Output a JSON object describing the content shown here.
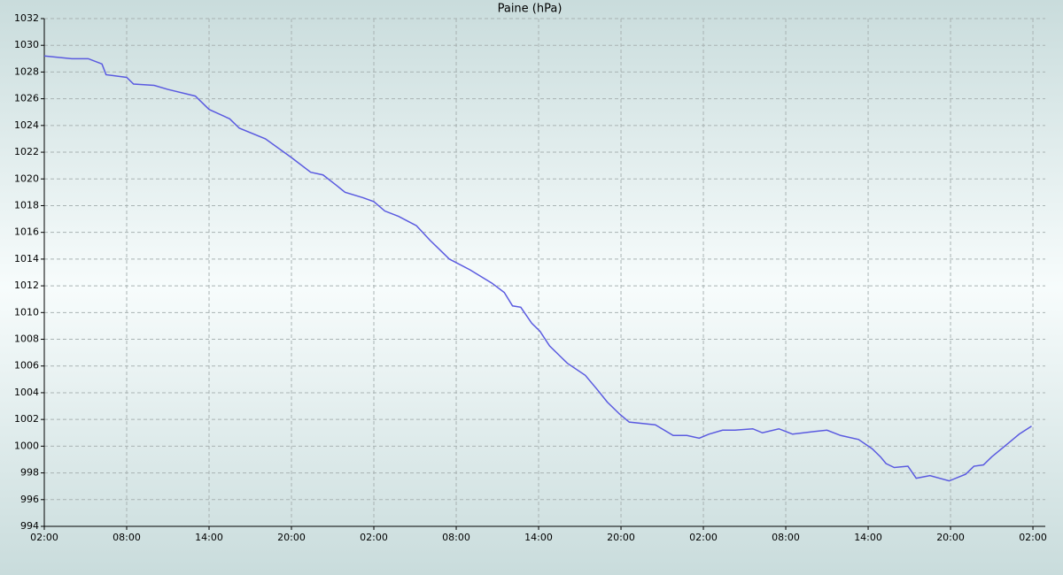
{
  "chart_data": {
    "type": "line",
    "title": "Paine (hPa)",
    "x": [
      0,
      2,
      3.2,
      4.2,
      4.5,
      6,
      6.5,
      8,
      9,
      11,
      12,
      13.5,
      14.2,
      16.1,
      18,
      19.4,
      20.3,
      21.3,
      21.9,
      23.2,
      24,
      24.8,
      25.8,
      27.1,
      28.1,
      29,
      29.5,
      31,
      32.6,
      33.5,
      34.1,
      34.7,
      35.5,
      36.1,
      36.8,
      38.1,
      39.4,
      40.3,
      41,
      41.9,
      42.6,
      44.5,
      45.8,
      46.8,
      47.7,
      48.4,
      49.4,
      50.3,
      51.6,
      52.3,
      53.5,
      54.5,
      56.1,
      57,
      58,
      59.3,
      60.3,
      60.9,
      61.3,
      61.9,
      62.9,
      63.5,
      64.5,
      65.9,
      67.1,
      67.7,
      68.4,
      69,
      70.3,
      71,
      71.9
    ],
    "series": [
      {
        "name": "Paine",
        "color": "#5a5ae0",
        "values": [
          1029.2,
          1029.0,
          1029.0,
          1028.6,
          1027.8,
          1027.6,
          1027.1,
          1027.0,
          1026.7,
          1026.2,
          1025.2,
          1024.5,
          1023.8,
          1023.0,
          1021.6,
          1020.5,
          1020.3,
          1019.5,
          1019.0,
          1018.6,
          1018.3,
          1017.6,
          1017.2,
          1016.5,
          1015.4,
          1014.5,
          1014.0,
          1013.2,
          1012.2,
          1011.5,
          1010.5,
          1010.4,
          1009.2,
          1008.6,
          1007.5,
          1006.2,
          1005.3,
          1004.2,
          1003.3,
          1002.4,
          1001.8,
          1001.6,
          1000.8,
          1000.8,
          1000.6,
          1000.9,
          1001.2,
          1001.2,
          1001.3,
          1001.0,
          1001.3,
          1000.9,
          1001.1,
          1001.2,
          1000.8,
          1000.5,
          999.8,
          999.2,
          998.7,
          998.4,
          998.5,
          997.6,
          997.8,
          997.4,
          997.9,
          998.5,
          998.6,
          999.2,
          1000.3,
          1000.9,
          1001.5
        ]
      }
    ],
    "xlim": [
      0,
      72.9
    ],
    "xticks": [
      {
        "value": 0,
        "label": "02:00"
      },
      {
        "value": 6,
        "label": "08:00"
      },
      {
        "value": 12,
        "label": "14:00"
      },
      {
        "value": 18,
        "label": "20:00"
      },
      {
        "value": 24,
        "label": "02:00"
      },
      {
        "value": 30,
        "label": "08:00"
      },
      {
        "value": 36,
        "label": "14:00"
      },
      {
        "value": 42,
        "label": "20:00"
      },
      {
        "value": 48,
        "label": "02:00"
      },
      {
        "value": 54,
        "label": "08:00"
      },
      {
        "value": 60,
        "label": "14:00"
      },
      {
        "value": 66,
        "label": "20:00"
      },
      {
        "value": 72,
        "label": "02:00"
      }
    ],
    "ylim": [
      994,
      1032
    ],
    "yticks": [
      994,
      996,
      998,
      1000,
      1002,
      1004,
      1006,
      1008,
      1010,
      1012,
      1014,
      1016,
      1018,
      1020,
      1022,
      1024,
      1026,
      1028,
      1030,
      1032
    ],
    "grid": true
  }
}
